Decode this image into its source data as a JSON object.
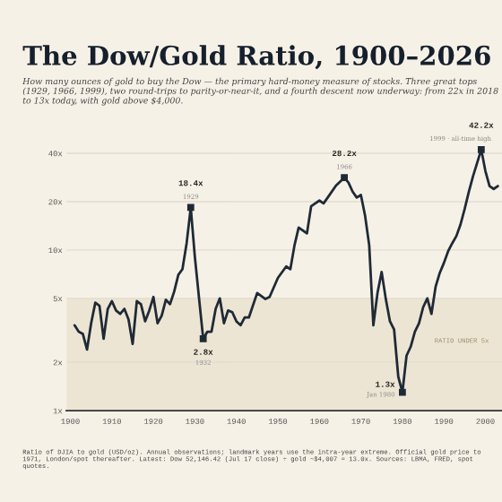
{
  "chart_data": {
    "type": "line",
    "title": "The Dow/Gold Ratio, 1900–2026",
    "subtitle": "How many ounces of gold to buy the Dow — the primary hard-money measure of stocks. Three great tops (1929, 1966, 1999), two round-trips to parity-or-near-it, and a fourth descent now underway: from 22x in 2018 to 13x today, with gold above $4,000.",
    "x": [
      1901,
      1902,
      1903,
      1904,
      1905,
      1906,
      1907,
      1908,
      1909,
      1910,
      1911,
      1912,
      1913,
      1914,
      1915,
      1916,
      1917,
      1918,
      1919,
      1920,
      1921,
      1922,
      1923,
      1924,
      1925,
      1926,
      1927,
      1928,
      1929,
      1930,
      1931,
      1932,
      1933,
      1934,
      1935,
      1936,
      1937,
      1938,
      1939,
      1940,
      1941,
      1942,
      1943,
      1945,
      1947,
      1948,
      1950,
      1952,
      1953,
      1954,
      1955,
      1957,
      1958,
      1959,
      1960,
      1961,
      1962,
      1964,
      1966,
      1967,
      1968,
      1969,
      1970,
      1971,
      1972,
      1973,
      1974,
      1975,
      1976,
      1977,
      1978,
      1979,
      1980,
      1981,
      1982,
      1983,
      1984,
      1985,
      1986,
      1987,
      1988,
      1989,
      1990,
      1991,
      1992,
      1993,
      1994,
      1995,
      1996,
      1997,
      1999,
      2000,
      2001,
      2002,
      2003
    ],
    "series": [
      {
        "color": "#1f2a36",
        "values": [
          3.4,
          3.1,
          3.0,
          2.4,
          3.5,
          4.7,
          4.5,
          2.8,
          4.3,
          4.8,
          4.2,
          4.0,
          4.3,
          3.7,
          2.6,
          4.8,
          4.6,
          3.6,
          4.2,
          5.1,
          3.5,
          3.9,
          4.9,
          4.6,
          5.5,
          7.0,
          7.6,
          11,
          18.4,
          9.0,
          5.0,
          2.8,
          3.1,
          3.1,
          4.3,
          5.0,
          3.5,
          4.2,
          4.1,
          3.6,
          3.4,
          3.8,
          3.8,
          5.4,
          4.95,
          5.1,
          6.7,
          7.9,
          7.6,
          10.7,
          13.8,
          12.7,
          18.7,
          19.5,
          20.3,
          19.5,
          21.2,
          25.2,
          28.2,
          26.3,
          23.1,
          21.2,
          22,
          16.4,
          10.7,
          3.4,
          5.4,
          7.3,
          4.95,
          3.6,
          3.2,
          1.63,
          1.3,
          2.2,
          2.5,
          3.1,
          3.5,
          4.4,
          5.0,
          4.0,
          5.9,
          7.2,
          8.3,
          9.8,
          11,
          12.2,
          14.4,
          18,
          23,
          28.7,
          42.2,
          31,
          25,
          24,
          25
        ]
      }
    ],
    "xlim": [
      1899,
      2004
    ],
    "xticks": [
      1900,
      1910,
      1920,
      1930,
      1940,
      1950,
      1960,
      1970,
      1980,
      1990,
      2000
    ],
    "log": true,
    "ylim": [
      1,
      48
    ],
    "yticks": [
      {
        "value": 1,
        "label": "1x"
      },
      {
        "value": 2,
        "label": "2x"
      },
      {
        "value": 5,
        "label": "5x"
      },
      {
        "value": 10,
        "label": "10x"
      },
      {
        "value": 20,
        "label": "20x"
      },
      {
        "value": 40,
        "label": "40x"
      }
    ],
    "grid": "y",
    "marker": "none",
    "line_style": "solid",
    "bands": [
      {
        "axis": "y",
        "from": 1,
        "to": 5,
        "label": "RATIO UNDER 5x",
        "color": "#ede5d3"
      }
    ],
    "annotations": [
      {
        "text": "18.4x\n1929",
        "x": 1929,
        "y": 18.4
      },
      {
        "text": "2.8x\n1932",
        "x": 1932,
        "y": 2.8
      },
      {
        "text": "28.2x\n1966",
        "x": 1966,
        "y": 28.2
      },
      {
        "text": "1.3x\nJan 1980",
        "x": 1980,
        "y": 1.3
      },
      {
        "text": "42.2x\n1999 · all-time high",
        "x": 1999,
        "y": 42.2
      },
      "Ratio of DJIA to gold (USD/oz). Annual observations; landmark years use the intra-year extreme. Official gold price to 1971, London/spot thereafter. Latest: Dow 52,146.42 (Jul 17 close) ÷ gold ~$4,007 = 13.0x. Sources: LBMA, FRED, spot quotes."
    ]
  }
}
